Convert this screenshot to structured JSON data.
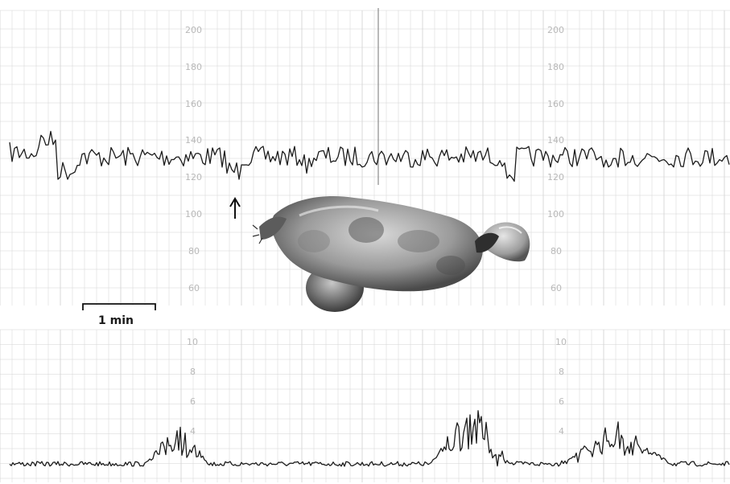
{
  "recording": {
    "upper_scale": {
      "ticks": [
        "200",
        "180",
        "160",
        "140",
        "120",
        "100",
        "80",
        "60"
      ]
    },
    "lower_scale": {
      "ticks": [
        "10",
        "8",
        "6",
        "4"
      ]
    },
    "time_scale_label": "1 min",
    "ink_color": "#1c1c1c",
    "grid_color": "#d4d4d4"
  },
  "photo": {
    "subject": "fetus-photo"
  }
}
